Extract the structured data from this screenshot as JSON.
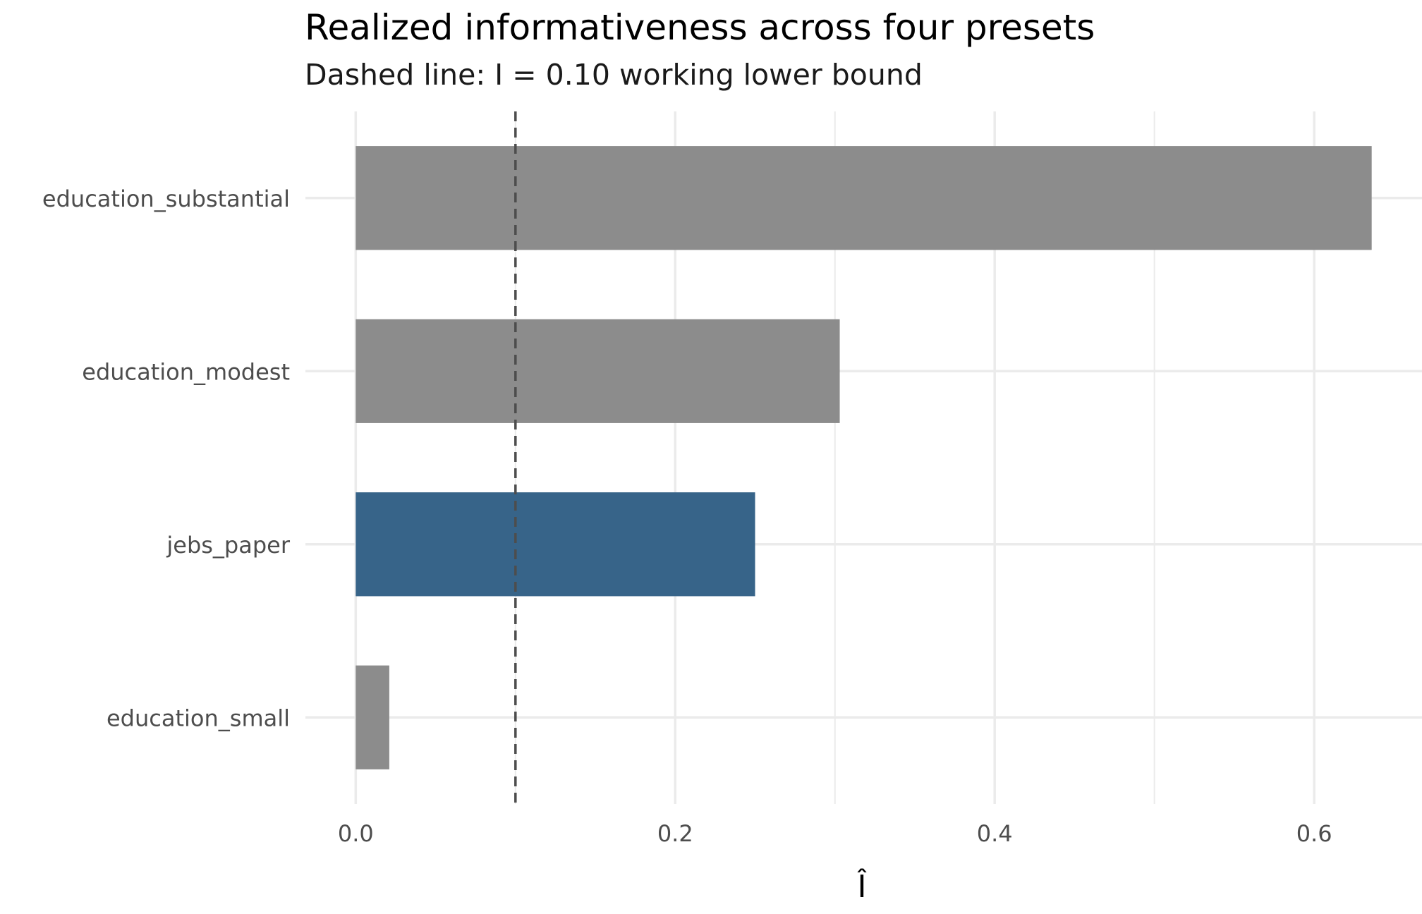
{
  "chart_data": {
    "type": "bar",
    "orientation": "horizontal",
    "title": "Realized informativeness across four presets",
    "subtitle": "Dashed line: I = 0.10 working lower bound",
    "xlabel": "Î",
    "ylabel": "",
    "categories": [
      "education_substantial",
      "education_modest",
      "jebs_paper",
      "education_small"
    ],
    "values": [
      0.636,
      0.303,
      0.25,
      0.021
    ],
    "highlight_category": "jebs_paper",
    "colors": {
      "default": "#8c8c8c",
      "highlight": "#376489",
      "reference_line": "#4d4d4d",
      "grid": "#ebebeb"
    },
    "reference_line": {
      "x": 0.1,
      "style": "dashed"
    },
    "xlim": [
      -0.0315,
      0.6675
    ],
    "xticks": [
      0.0,
      0.2,
      0.4,
      0.6
    ],
    "xtick_labels": [
      "0.0",
      "0.2",
      "0.4",
      "0.6"
    ],
    "grid": true,
    "legend": "none"
  }
}
